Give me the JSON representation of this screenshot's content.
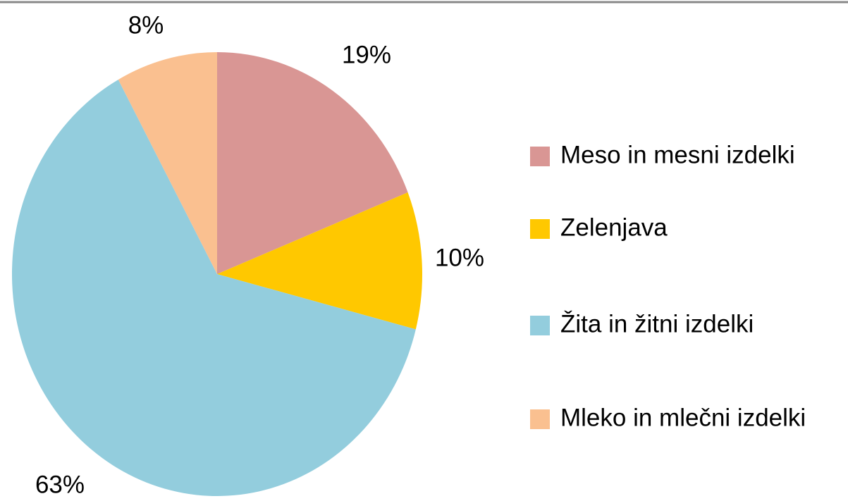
{
  "chart_data": {
    "type": "pie",
    "categories": [
      "Meso in mesni izdelki",
      "Zelenjava",
      "Žita in žitni izdelki",
      "Mleko in mlečni izdelki"
    ],
    "values": [
      19,
      10,
      63,
      8
    ],
    "value_labels": [
      "19%",
      "10%",
      "63%",
      "8%"
    ],
    "colors": [
      "#d99694",
      "#ffc800",
      "#93cddd",
      "#fac090"
    ],
    "legend": "right"
  }
}
